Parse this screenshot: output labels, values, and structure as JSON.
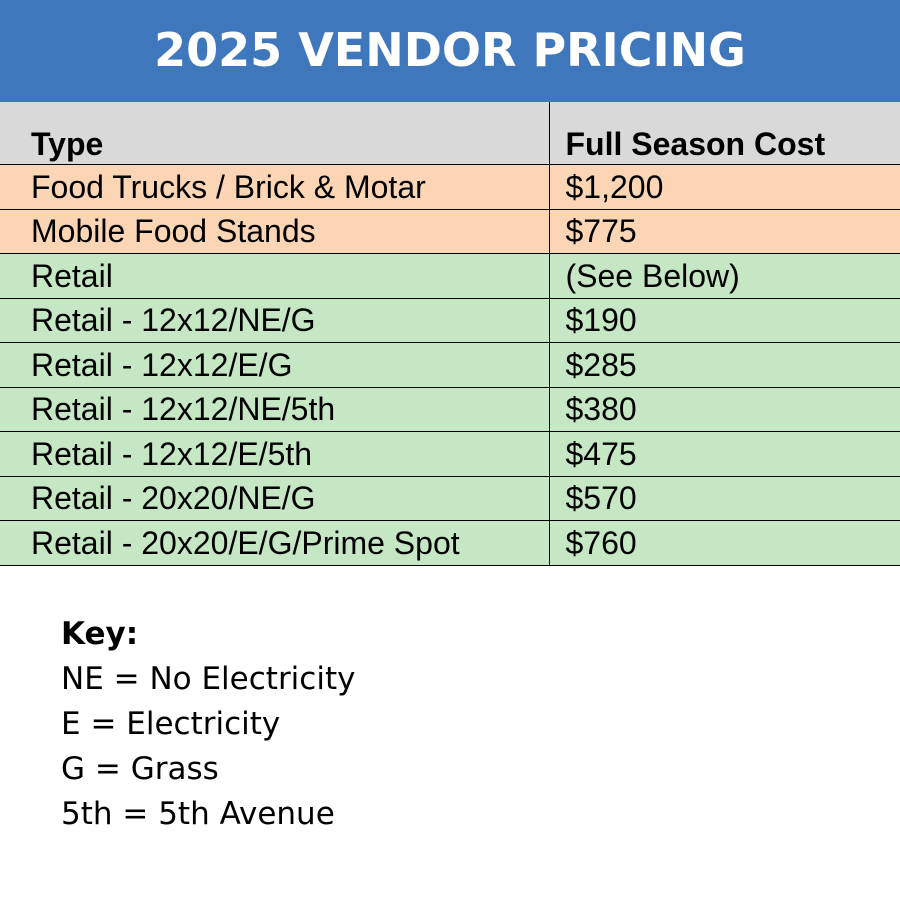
{
  "header": {
    "title": "2025 VENDOR PRICING"
  },
  "table": {
    "columns": [
      "Type",
      "Full Season Cost"
    ],
    "rows": [
      {
        "type": "Food Trucks / Brick & Motar",
        "cost": "$1,200",
        "category": "food"
      },
      {
        "type": "Mobile Food Stands",
        "cost": "$775",
        "category": "food"
      },
      {
        "type": "Retail",
        "cost": "(See Below)",
        "category": "retail"
      },
      {
        "type": "Retail - 12x12/NE/G",
        "cost": "$190",
        "category": "retail"
      },
      {
        "type": "Retail - 12x12/E/G",
        "cost": "$285",
        "category": "retail"
      },
      {
        "type": "Retail - 12x12/NE/5th",
        "cost": "$380",
        "category": "retail"
      },
      {
        "type": "Retail - 12x12/E/5th",
        "cost": "$475",
        "category": "retail"
      },
      {
        "type": "Retail - 20x20/NE/G",
        "cost": "$570",
        "category": "retail"
      },
      {
        "type": "Retail - 20x20/E/G/Prime Spot",
        "cost": "$760",
        "category": "retail"
      }
    ]
  },
  "key": {
    "title": "Key:",
    "items": [
      "NE = No Electricity",
      "E = Electricity",
      "G = Grass",
      "5th = 5th Avenue"
    ]
  },
  "colors": {
    "banner": "#3f77bd",
    "header_row": "#d9d9d9",
    "food_row": "#fcd5b4",
    "retail_row": "#c6e7c4"
  }
}
